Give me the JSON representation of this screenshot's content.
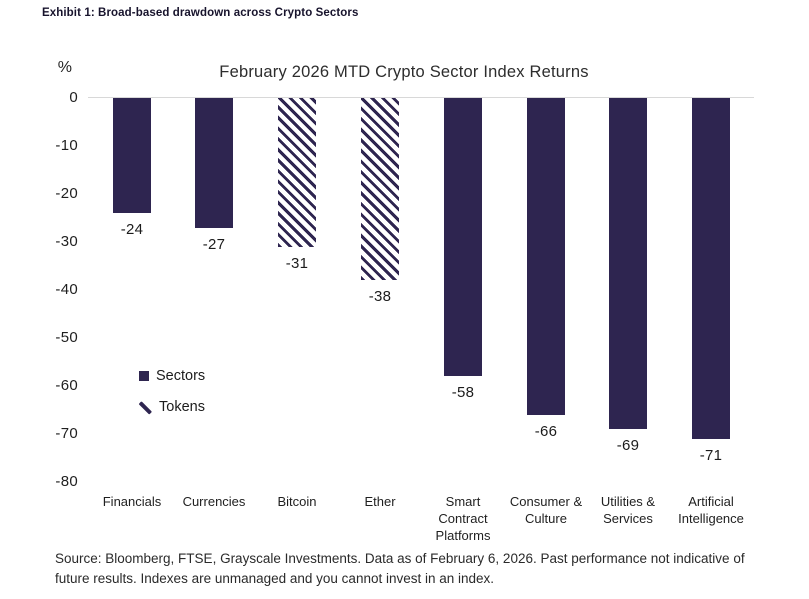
{
  "page": {
    "exhibit_title": "Exhibit 1: Broad-based drawdown across Crypto Sectors",
    "source_note": "Source: Bloomberg, FTSE, Grayscale Investments. Data as of February 6, 2026. Past performance not indicative of future results. Indexes are unmanaged and you cannot invest in an index."
  },
  "colors": {
    "bar": "#2e2550",
    "heading": "#17132c",
    "grid_line": "#d8d8d8",
    "text": "#1f1f1f"
  },
  "chart_data": {
    "type": "bar",
    "title": "February 2026 MTD Crypto Sector Index Returns",
    "ylabel": "%",
    "xlabel": "",
    "ylim": [
      -80,
      0
    ],
    "yticks": [
      0,
      -10,
      -20,
      -30,
      -40,
      -50,
      -60,
      -70,
      -80
    ],
    "grid": "zero-baseline only",
    "legend_position": "inside-left",
    "legend": [
      {
        "label": "Sectors",
        "style": "solid"
      },
      {
        "label": "Tokens",
        "style": "hatched"
      }
    ],
    "categories": [
      "Financials",
      "Currencies",
      "Bitcoin",
      "Ether",
      "Smart Contract Platforms",
      "Consumer & Culture",
      "Utilities & Services",
      "Artificial Intelligence"
    ],
    "category_lines": [
      [
        "Financials"
      ],
      [
        "Currencies"
      ],
      [
        "Bitcoin"
      ],
      [
        "Ether"
      ],
      [
        "Smart",
        "Contract",
        "Platforms"
      ],
      [
        "Consumer &",
        "Culture"
      ],
      [
        "Utilities &",
        "Services"
      ],
      [
        "Artificial",
        "Intelligence"
      ]
    ],
    "values": [
      -24,
      -27,
      -31,
      -38,
      -58,
      -66,
      -69,
      -71
    ],
    "value_labels": [
      "-24",
      "-27",
      "-31",
      "-38",
      "-58",
      "-66",
      "-69",
      "-71"
    ],
    "bar_styles": [
      "solid",
      "solid",
      "hatched",
      "hatched",
      "solid",
      "solid",
      "solid",
      "solid"
    ]
  }
}
